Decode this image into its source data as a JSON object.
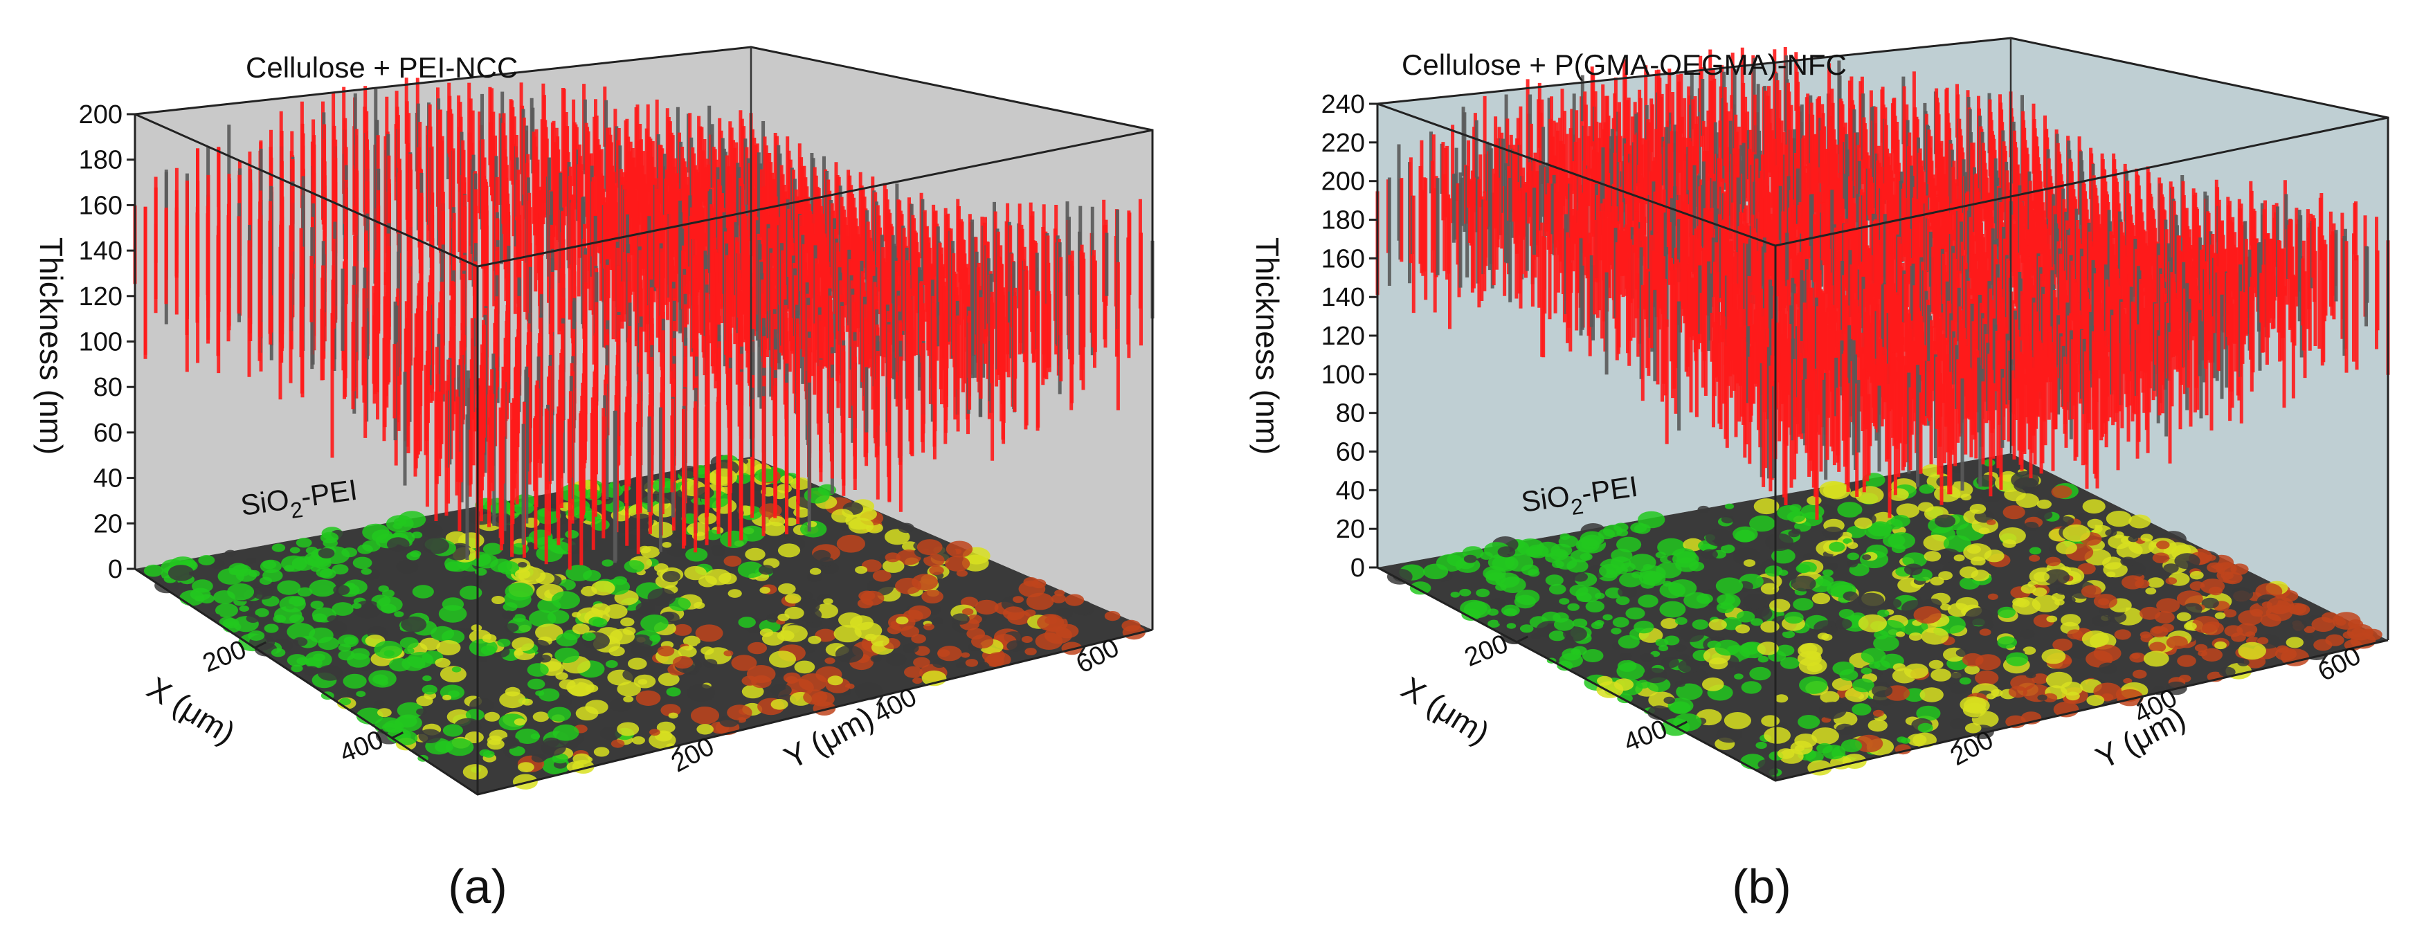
{
  "chart_data": [
    {
      "type": "surface3d",
      "panel": "(a)",
      "title": "Cellulose + PEI-NCC",
      "floor_label_base": "SiO",
      "floor_label_sub": "2",
      "floor_label_tail": "-PEI",
      "zlabel": "Thickness (nm)",
      "xlabel": "X (μm)",
      "ylabel": "Y (μm)",
      "zticks": [
        "0",
        "20",
        "40",
        "60",
        "80",
        "100",
        "120",
        "140",
        "160",
        "180",
        "200"
      ],
      "zlim": [
        0,
        200
      ],
      "xticks": [
        "200",
        "400"
      ],
      "yticks": [
        "200",
        "400",
        "600"
      ],
      "film_thickness_range": [
        80,
        200
      ],
      "surface_color": "#ff1a1a",
      "floor_colors": [
        "#22c81e",
        "#d8e020",
        "#c0441c",
        "#3a3a3a"
      ],
      "background": "#c9c9c9"
    },
    {
      "type": "surface3d",
      "panel": "(b)",
      "title": "Cellulose + P(GMA-OEGMA)-NFC",
      "floor_label_base": "SiO",
      "floor_label_sub": "2",
      "floor_label_tail": "-PEI",
      "zlabel": "Thickness (nm)",
      "xlabel": "X (μm)",
      "ylabel": "Y (μm)",
      "zticks": [
        "0",
        "20",
        "40",
        "60",
        "80",
        "100",
        "120",
        "140",
        "160",
        "180",
        "200",
        "220",
        "240"
      ],
      "zlim": [
        0,
        240
      ],
      "xticks": [
        "200",
        "400"
      ],
      "yticks": [
        "200",
        "400",
        "600"
      ],
      "film_thickness_range": [
        100,
        250
      ],
      "surface_color": "#ff1a1a",
      "floor_colors": [
        "#22c81e",
        "#d8e020",
        "#c0441c",
        "#3a3a3a"
      ],
      "background": "#bfcfd3"
    }
  ]
}
